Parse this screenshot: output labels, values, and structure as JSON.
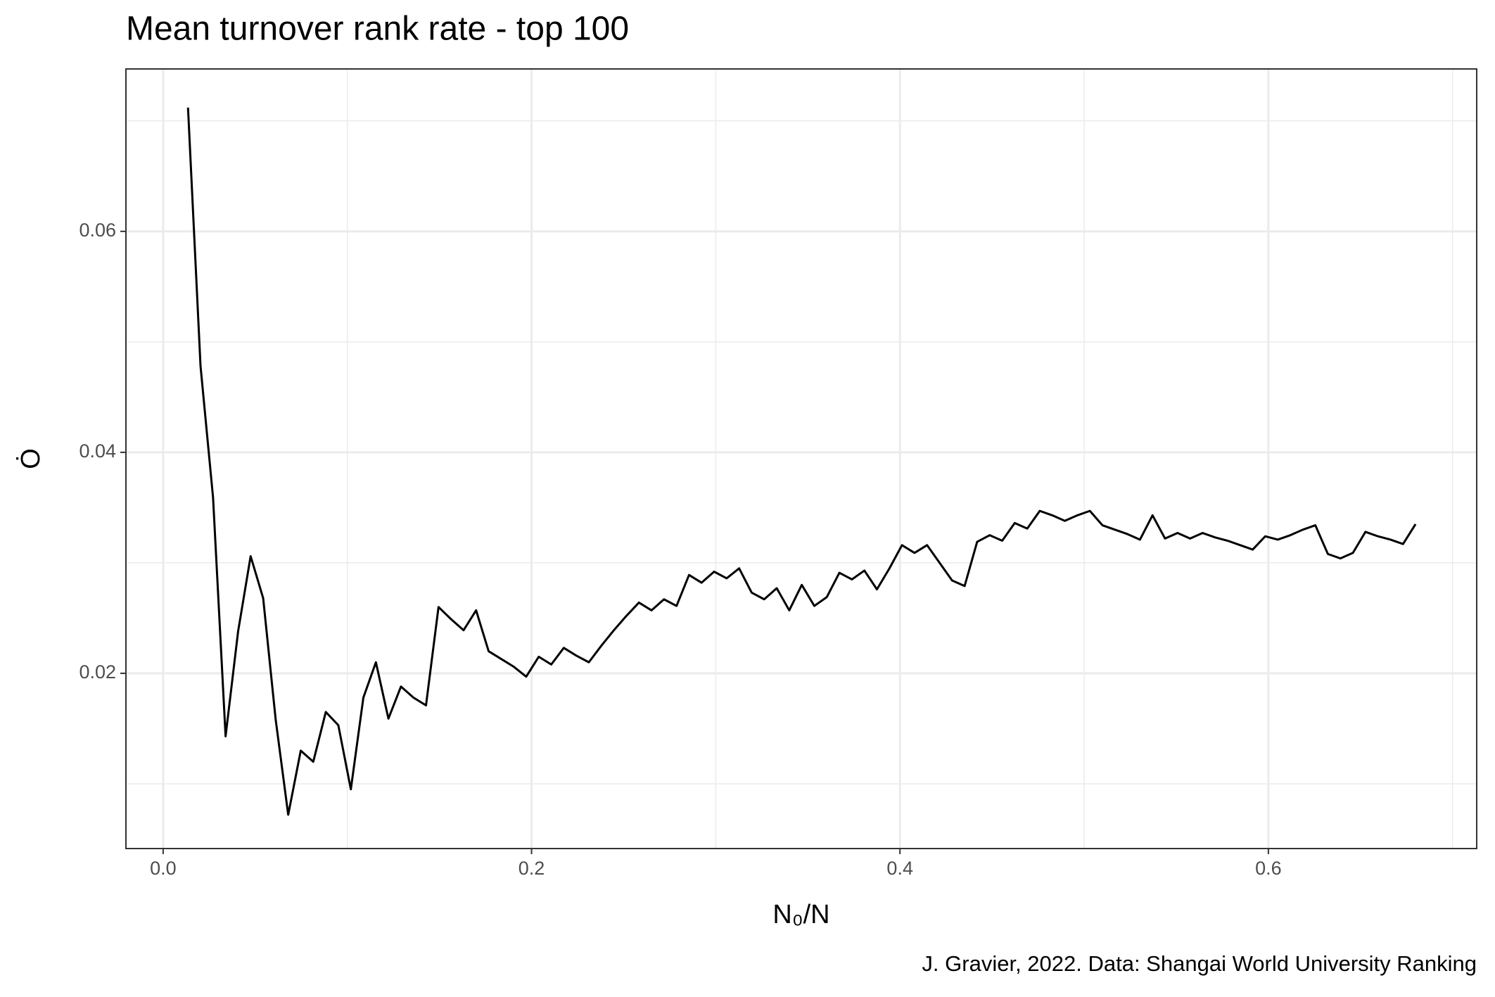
{
  "chart_data": {
    "type": "line",
    "title": "Mean turnover rank rate - top 100",
    "x_label": "N₀/N",
    "y_label": "Ȯ",
    "caption": "J. Gravier, 2022. Data: Shangai World University Ranking",
    "x": [
      0.0135,
      0.0203,
      0.0271,
      0.0339,
      0.0407,
      0.0475,
      0.0543,
      0.0611,
      0.0679,
      0.0747,
      0.0815,
      0.0883,
      0.0951,
      0.1019,
      0.1087,
      0.1155,
      0.1223,
      0.1291,
      0.1359,
      0.1427,
      0.1495,
      0.1563,
      0.1631,
      0.1699,
      0.1767,
      0.1835,
      0.1903,
      0.1971,
      0.2039,
      0.2107,
      0.2175,
      0.2243,
      0.2311,
      0.2379,
      0.2447,
      0.2515,
      0.2583,
      0.2651,
      0.2719,
      0.2787,
      0.2855,
      0.2923,
      0.2991,
      0.3059,
      0.3127,
      0.3195,
      0.3263,
      0.3331,
      0.3399,
      0.3467,
      0.3535,
      0.3603,
      0.3671,
      0.3739,
      0.3807,
      0.3875,
      0.3943,
      0.4011,
      0.4079,
      0.4147,
      0.4215,
      0.4283,
      0.4351,
      0.4419,
      0.4487,
      0.4555,
      0.4623,
      0.4691,
      0.4759,
      0.4827,
      0.4895,
      0.4963,
      0.5031,
      0.5099,
      0.5167,
      0.5235,
      0.5303,
      0.5371,
      0.5439,
      0.5507,
      0.5575,
      0.5643,
      0.5711,
      0.5779,
      0.5847,
      0.5915,
      0.5983,
      0.6051,
      0.6119,
      0.6187,
      0.6255,
      0.6323,
      0.6391,
      0.6459,
      0.6527,
      0.6595,
      0.6663,
      0.6731,
      0.6799
    ],
    "series": [
      {
        "color": "#000000",
        "values": [
          0.0712,
          0.0478,
          0.0359,
          0.0143,
          0.0238,
          0.0306,
          0.0268,
          0.0158,
          0.0072,
          0.013,
          0.012,
          0.0165,
          0.0153,
          0.0095,
          0.0178,
          0.021,
          0.0159,
          0.0188,
          0.0178,
          0.0171,
          0.026,
          0.0249,
          0.0239,
          0.0257,
          0.022,
          0.0213,
          0.0206,
          0.0197,
          0.0215,
          0.0208,
          0.0223,
          0.0216,
          0.021,
          0.0225,
          0.0239,
          0.0252,
          0.0264,
          0.0257,
          0.0267,
          0.0261,
          0.0289,
          0.0282,
          0.0292,
          0.0286,
          0.0295,
          0.0273,
          0.0267,
          0.0277,
          0.0257,
          0.028,
          0.0261,
          0.0269,
          0.0291,
          0.0285,
          0.0293,
          0.0276,
          0.0295,
          0.0316,
          0.0309,
          0.0316,
          0.03,
          0.0284,
          0.0279,
          0.0319,
          0.0325,
          0.032,
          0.0336,
          0.0331,
          0.0347,
          0.0343,
          0.0338,
          0.0343,
          0.0347,
          0.0334,
          0.033,
          0.0326,
          0.0321,
          0.0343,
          0.0322,
          0.0327,
          0.0322,
          0.0327,
          0.0323,
          0.032,
          0.0316,
          0.0312,
          0.0324,
          0.0321,
          0.0325,
          0.033,
          0.0334,
          0.0308,
          0.0304,
          0.0309,
          0.0328,
          0.0324,
          0.0321,
          0.0317,
          0.0335
        ]
      }
    ],
    "xlim": [
      -0.0202,
      0.7131
    ],
    "ylim": [
      0.00414,
      0.0747
    ],
    "xticks": [
      {
        "value": 0,
        "label": "0.0"
      },
      0.2,
      0.4,
      0.6
    ],
    "yticks": [
      {
        "value": 0.02,
        "label": "0.02"
      },
      0.04,
      0.06
    ],
    "x_minor_grid": [
      0.1,
      0.3,
      0.5,
      0.7
    ],
    "y_minor_grid": [
      0.01,
      0.03,
      0.05,
      0.07
    ],
    "grid": true
  }
}
